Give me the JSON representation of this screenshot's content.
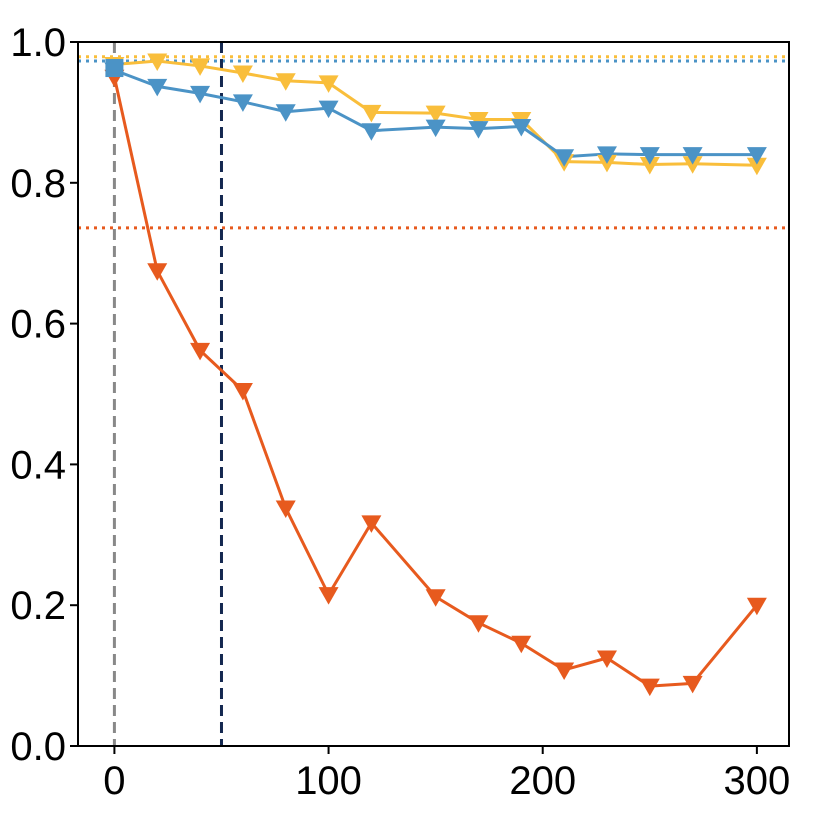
{
  "chart_data": {
    "type": "line",
    "title": "",
    "xlabel": "",
    "ylabel": "",
    "xlim": [
      -17,
      315
    ],
    "ylim": [
      0.0,
      1.0
    ],
    "x_ticks": [
      0,
      100,
      200,
      300
    ],
    "x_tick_labels": [
      "0",
      "100",
      "200",
      "300"
    ],
    "y_ticks": [
      0.0,
      0.2,
      0.4,
      0.6,
      0.8,
      1.0
    ],
    "y_tick_labels": [
      "0.0",
      "0.2",
      "0.4",
      "0.6",
      "0.8",
      "1.0"
    ],
    "grid": false,
    "legend": "none",
    "series": [
      {
        "name": "yellow",
        "color": "#F9BE3B",
        "marker": "triangle-down",
        "x": [
          0,
          20,
          40,
          60,
          80,
          100,
          120,
          150,
          170,
          190,
          210,
          230,
          250,
          270,
          300
        ],
        "values": [
          0.968,
          0.973,
          0.966,
          0.956,
          0.945,
          0.942,
          0.9,
          0.899,
          0.89,
          0.89,
          0.83,
          0.829,
          0.826,
          0.827,
          0.825
        ]
      },
      {
        "name": "blue",
        "color": "#4B93C6",
        "marker": "triangle-down",
        "x": [
          0,
          20,
          40,
          60,
          80,
          100,
          120,
          150,
          170,
          190,
          210,
          230,
          250,
          270,
          300
        ],
        "values": [
          0.96,
          0.937,
          0.927,
          0.915,
          0.901,
          0.906,
          0.874,
          0.879,
          0.877,
          0.88,
          0.837,
          0.841,
          0.84,
          0.84,
          0.84
        ]
      },
      {
        "name": "orange",
        "color": "#E75A1E",
        "marker": "triangle-down",
        "x": [
          0,
          20,
          40,
          60,
          80,
          100,
          120,
          150,
          170,
          190,
          210,
          230,
          250,
          270,
          300
        ],
        "values": [
          0.95,
          0.675,
          0.562,
          0.505,
          0.338,
          0.215,
          0.317,
          0.212,
          0.175,
          0.146,
          0.108,
          0.125,
          0.085,
          0.089,
          0.2
        ]
      }
    ],
    "start_marker": {
      "x": 0,
      "y": 0.963,
      "color": "#4B93C6",
      "marker": "square"
    },
    "hlines": [
      {
        "y": 0.979,
        "color": "#F9BE3B",
        "style": "dotted"
      },
      {
        "y": 0.973,
        "color": "#4B93C6",
        "style": "dotted"
      },
      {
        "y": 0.736,
        "color": "#E75A1E",
        "style": "dotted"
      }
    ],
    "vlines": [
      {
        "x": 0,
        "color": "#888888",
        "style": "dashed"
      },
      {
        "x": 50,
        "color": "#142850",
        "style": "dashed"
      }
    ]
  }
}
